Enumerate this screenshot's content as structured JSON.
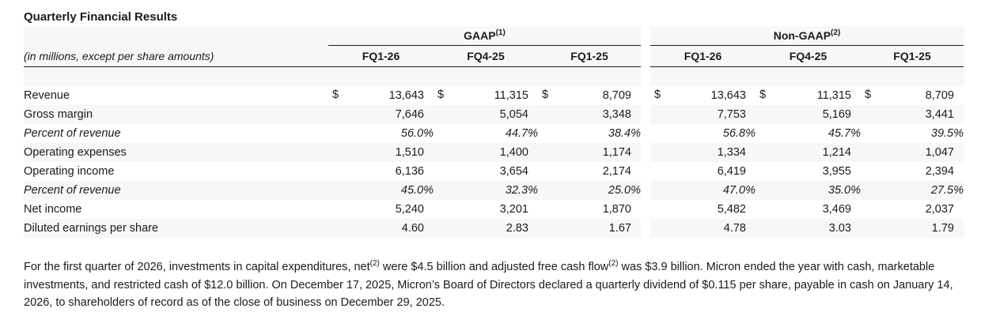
{
  "title": "Quarterly Financial Results",
  "unit_label": "(in millions, except per share amounts)",
  "groups": [
    {
      "label": "GAAP",
      "note": "(1)"
    },
    {
      "label": "Non-GAAP",
      "note": "(2)"
    }
  ],
  "columns": [
    "FQ1-26",
    "FQ4-25",
    "FQ1-25",
    "FQ1-26",
    "FQ4-25",
    "FQ1-25"
  ],
  "currency_symbol": "$",
  "rows": [
    {
      "label": "Revenue",
      "values": [
        "13,643",
        "11,315",
        "8,709",
        "13,643",
        "11,315",
        "8,709"
      ],
      "dollar": true
    },
    {
      "label": "Gross margin",
      "values": [
        "7,646",
        "5,054",
        "3,348",
        "7,753",
        "5,169",
        "3,441"
      ]
    },
    {
      "label": "Percent of revenue",
      "values": [
        "56.0%",
        "44.7%",
        "38.4%",
        "56.8%",
        "45.7%",
        "39.5%"
      ],
      "pct": true
    },
    {
      "label": "Operating expenses",
      "values": [
        "1,510",
        "1,400",
        "1,174",
        "1,334",
        "1,214",
        "1,047"
      ]
    },
    {
      "label": "Operating income",
      "values": [
        "6,136",
        "3,654",
        "2,174",
        "6,419",
        "3,955",
        "2,394"
      ]
    },
    {
      "label": "Percent of revenue",
      "values": [
        "45.0%",
        "32.3%",
        "25.0%",
        "47.0%",
        "35.0%",
        "27.5%"
      ],
      "pct": true
    },
    {
      "label": "Net income",
      "values": [
        "5,240",
        "3,201",
        "1,870",
        "5,482",
        "3,469",
        "2,037"
      ]
    },
    {
      "label": "Diluted earnings per share",
      "values": [
        "4.60",
        "2.83",
        "1.67",
        "4.78",
        "3.03",
        "1.79"
      ]
    }
  ],
  "paragraph": {
    "p1": "For the first quarter of 2026, investments in capital expenditures, net",
    "n1": "(2)",
    "p2": " were $4.5 billion and adjusted free cash flow",
    "n2": "(2)",
    "p3": " was $3.9 billion. Micron ended the year with cash, marketable investments, and restricted cash of $12.0 billion. On December 17, 2025, Micron’s Board of Directors declared a quarterly dividend of $0.115 per share, payable in cash on January 14, 2026, to shareholders of record as of the close of business on December 29, 2025."
  }
}
